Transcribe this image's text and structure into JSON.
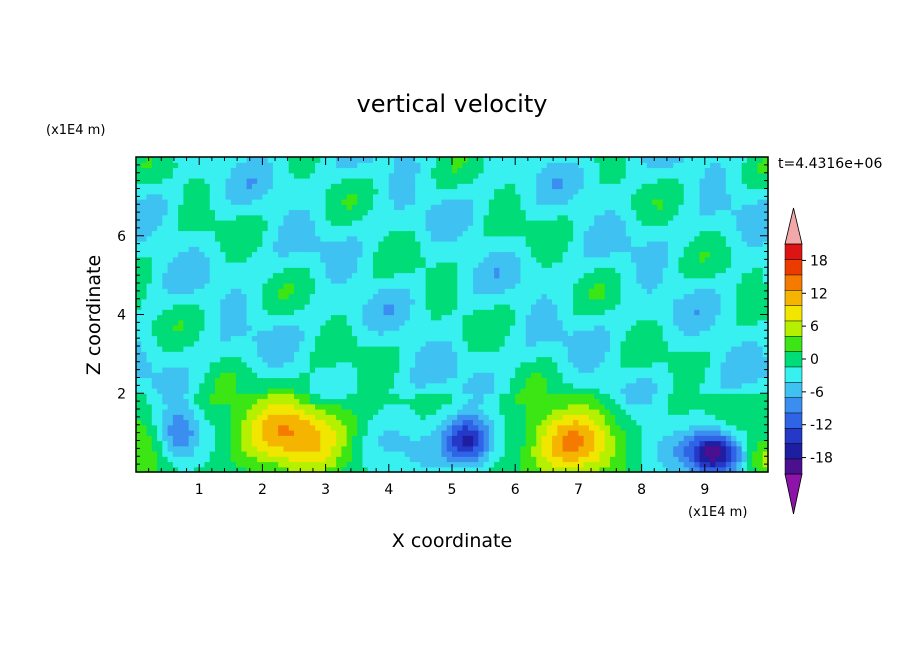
{
  "chart_data": {
    "type": "heatmap",
    "title": "vertical velocity",
    "xlabel": "X coordinate",
    "ylabel": "Z coordinate",
    "x_unit": "(x1E4 m)",
    "y_unit": "(x1E4 m)",
    "time_label": "t=4.4316e+06",
    "xlim": [
      0,
      10
    ],
    "ylim": [
      0,
      8
    ],
    "x_ticks": [
      1,
      2,
      3,
      4,
      5,
      6,
      7,
      8,
      9
    ],
    "y_ticks": [
      2,
      4,
      6
    ],
    "grid": false,
    "colorbar": {
      "placement": "right",
      "levels": [
        -21,
        -18,
        -15,
        -12,
        -9,
        -6,
        -3,
        0,
        3,
        6,
        9,
        12,
        15,
        18,
        21
      ],
      "tick_labels": [
        "18",
        "12",
        "6",
        "0",
        "-6",
        "-12",
        "-18"
      ],
      "tick_values": [
        18,
        12,
        6,
        0,
        -6,
        -12,
        -18
      ],
      "colors": [
        "#4b0f8f",
        "#1e1ea0",
        "#2538c8",
        "#2f64e6",
        "#3b8ef0",
        "#3fc2f2",
        "#38f0f0",
        "#00dc78",
        "#3ce614",
        "#b4f000",
        "#f0e600",
        "#f5b400",
        "#f57a00",
        "#eb3c00",
        "#dc1414"
      ],
      "under_color": "#8c14a8",
      "over_color": "#f2a8a8"
    },
    "features": [
      {
        "x": 2.6,
        "z": 0.9,
        "amp": 12,
        "sx": 0.75,
        "sz": 0.7
      },
      {
        "x": 2.4,
        "z": 1.3,
        "amp": 4,
        "sx": 0.5,
        "sz": 0.5
      },
      {
        "x": 6.9,
        "z": 0.75,
        "amp": 15,
        "sx": 0.55,
        "sz": 0.65
      },
      {
        "x": 9.15,
        "z": 0.5,
        "amp": -19,
        "sx": 0.28,
        "sz": 0.38
      },
      {
        "x": 5.25,
        "z": 0.75,
        "amp": -14,
        "sx": 0.25,
        "sz": 0.45
      },
      {
        "x": 0.7,
        "z": 1.0,
        "amp": -9,
        "sx": 0.2,
        "sz": 0.5
      },
      {
        "x": 0.05,
        "z": 0.6,
        "amp": 6,
        "sx": 0.2,
        "sz": 0.5
      },
      {
        "x": 9.95,
        "z": 0.4,
        "amp": 7,
        "sx": 0.2,
        "sz": 0.35
      },
      {
        "x": 4.2,
        "z": 0.9,
        "amp": -5,
        "sx": 0.8,
        "sz": 0.5
      },
      {
        "x": 8.1,
        "z": 0.6,
        "amp": -4,
        "sx": 0.5,
        "sz": 0.4
      }
    ]
  }
}
